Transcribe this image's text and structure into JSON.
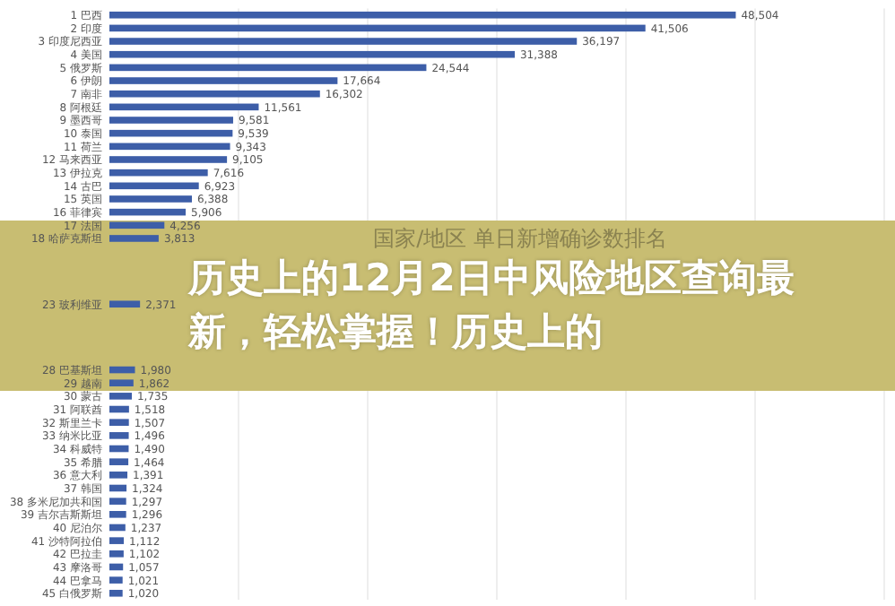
{
  "chart_data": {
    "type": "bar",
    "orientation": "horizontal",
    "title": "历史上的12月2日中风险地区查询最新，轻松掌握！历史上的",
    "subtitle": "国家/地区 单日新增确诊数排名",
    "categories": [
      "1 巴西",
      "2 印度",
      "3 印度尼西亚",
      "4 美国",
      "5 俄罗斯",
      "6 伊朗",
      "7 南非",
      "8 阿根廷",
      "9 墨西哥",
      "10 泰国",
      "11 荷兰",
      "12 马来西亚",
      "13 伊拉克",
      "14 古巴",
      "15 英国",
      "16 菲律宾",
      "17 法国",
      "18 哈萨克斯坦",
      null,
      null,
      null,
      null,
      "23 玻利维亚",
      null,
      null,
      null,
      null,
      "28 巴基斯坦",
      "29 越南",
      "30 蒙古",
      "31 阿联酋",
      "32 斯里兰卡",
      "33 纳米比亚",
      "34 科威特",
      "35 希腊",
      "36 意大利",
      "37 韩国",
      "38 多米尼加共和国",
      "39 吉尔吉斯斯坦",
      "40 尼泊尔",
      "41 沙特阿拉伯",
      "42 巴拉圭",
      "43 摩洛哥",
      "44 巴拿马",
      "45 白俄罗斯"
    ],
    "values": [
      48504,
      41506,
      36197,
      31388,
      24544,
      17664,
      16302,
      11561,
      9581,
      9539,
      9343,
      9105,
      7616,
      6923,
      6388,
      5906,
      4256,
      3813,
      null,
      null,
      null,
      null,
      2371,
      null,
      null,
      null,
      null,
      1980,
      1862,
      1735,
      1518,
      1507,
      1496,
      1490,
      1464,
      1391,
      1324,
      1297,
      1296,
      1237,
      1112,
      1102,
      1057,
      1021,
      1020
    ],
    "value_labels": [
      "48,504",
      "41,506",
      "36,197",
      "31,388",
      "24,544",
      "17,664",
      "16,302",
      "11,561",
      "9,581",
      "9,539",
      "9,343",
      "9,105",
      "7,616",
      "6,923",
      "6,388",
      "5,906",
      "4,256",
      "3,813",
      null,
      null,
      null,
      null,
      "2,371",
      null,
      null,
      null,
      null,
      "1,980",
      "1,862",
      "1,735",
      "1,518",
      "1,507",
      "1,496",
      "1,490",
      "1,464",
      "1,391",
      "1,324",
      "1,297",
      "1,296",
      "1,237",
      "1,112",
      "1,102",
      "1,057",
      "1,021",
      "1,020"
    ],
    "color": "#3d5ea8",
    "xlim": [
      0,
      60000
    ],
    "xticks": [
      {
        "value": 10000,
        "label": null
      },
      {
        "value": 20000,
        "label": null
      },
      {
        "value": 30000,
        "label": null
      },
      {
        "value": 40000,
        "label": null
      },
      {
        "value": 50000,
        "label": null
      },
      {
        "value": 60000,
        "label": null
      }
    ],
    "grid": "x",
    "tick_labels": "y"
  }
}
